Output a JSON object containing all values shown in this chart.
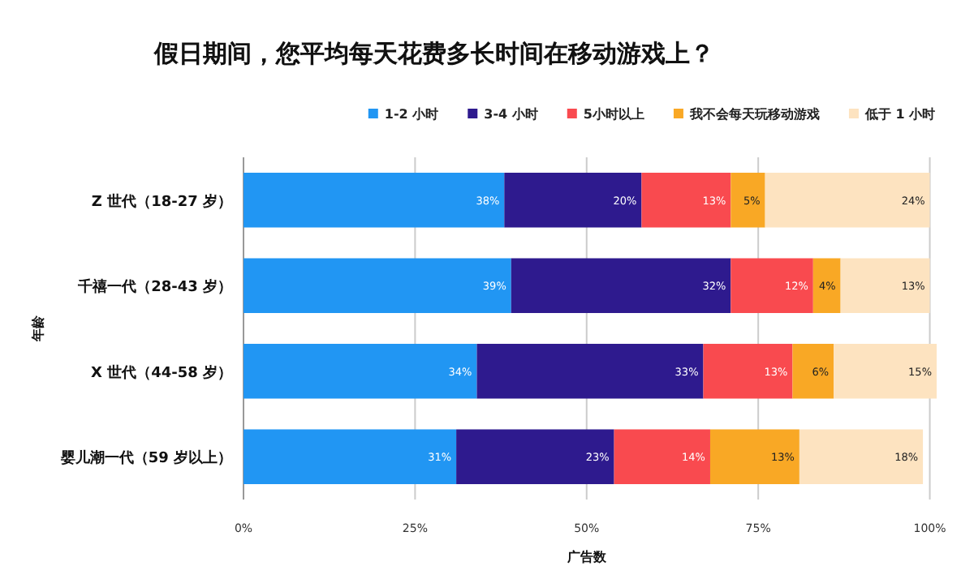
{
  "chart_data": {
    "type": "bar",
    "orientation": "horizontal",
    "stacked": true,
    "title": "假日期间，您平均每天花费多长时间在移动游戏上？",
    "xlabel": "广告数",
    "ylabel": "年龄",
    "legend": "top",
    "grid": "x",
    "categories": [
      "Z 世代（18-27 岁）",
      "千禧一代（28-43 岁）",
      "X 世代（44-58 岁）",
      "婴儿潮一代（59 岁以上）"
    ],
    "xlim": [
      0,
      101
    ],
    "xticks": [
      {
        "value": 0,
        "label": "0%"
      },
      {
        "value": 25,
        "label": "25%"
      },
      {
        "value": 50,
        "label": "50%"
      },
      {
        "value": 75,
        "label": "75%"
      },
      {
        "value": 100,
        "label": "100%"
      }
    ],
    "series": [
      {
        "name": "1-2 小时",
        "color": "#2196f3",
        "values": [
          38,
          39,
          34,
          31
        ],
        "value_labels": [
          "38%",
          "39%",
          "34%",
          "31%"
        ]
      },
      {
        "name": "3-4 小时",
        "color": "#2e1a8e",
        "values": [
          20,
          32,
          33,
          23
        ],
        "value_labels": [
          "20%",
          "32%",
          "33%",
          "23%"
        ]
      },
      {
        "name": "5小时以上",
        "color": "#f94a4f",
        "values": [
          13,
          12,
          13,
          14
        ],
        "value_labels": [
          "13%",
          "12%",
          "13%",
          "14%"
        ]
      },
      {
        "name": "我不会每天玩移动游戏",
        "color": "#f9a825",
        "values": [
          5,
          4,
          6,
          13
        ],
        "value_labels": [
          "5%",
          "4%",
          "6%",
          "13%"
        ]
      },
      {
        "name": "低于 1 小时",
        "color": "#fde3c0",
        "values": [
          24,
          13,
          15,
          18
        ],
        "value_labels": [
          "24%",
          "13%",
          "15%",
          "18%"
        ]
      }
    ]
  }
}
